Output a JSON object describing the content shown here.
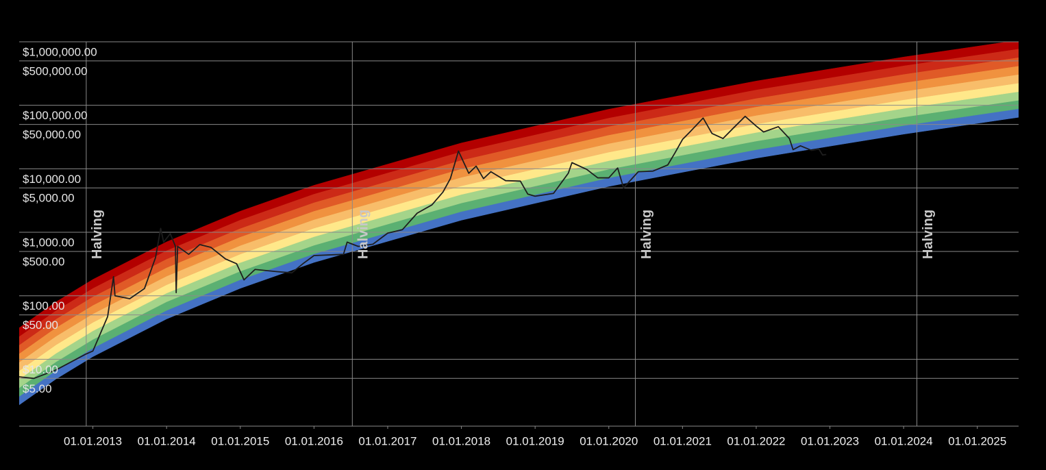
{
  "chart_data": {
    "type": "line",
    "xlim": [
      2012.0,
      2025.56
    ],
    "ylim": [
      0.885,
      1000000
    ],
    "log_y": true,
    "grid": true,
    "xticks": [
      {
        "value": 2013,
        "label": "01.01.2013"
      },
      {
        "value": 2014,
        "label": "01.01.2014"
      },
      {
        "value": 2015,
        "label": "01.01.2015"
      },
      {
        "value": 2016,
        "label": "01.01.2016"
      },
      {
        "value": 2017,
        "label": "01.01.2017"
      },
      {
        "value": 2018,
        "label": "01.01.2018"
      },
      {
        "value": 2019,
        "label": "01.01.2019"
      },
      {
        "value": 2020,
        "label": "01.01.2020"
      },
      {
        "value": 2021,
        "label": "01.01.2021"
      },
      {
        "value": 2022,
        "label": "01.01.2022"
      },
      {
        "value": 2023,
        "label": "01.01.2023"
      },
      {
        "value": 2024,
        "label": "01.01.2024"
      },
      {
        "value": 2025,
        "label": "01.01.2025"
      }
    ],
    "yticks": [
      {
        "value": 1000000,
        "label": "$1,000,000.00"
      },
      {
        "value": 500000,
        "label": "$500,000.00"
      },
      {
        "value": 100000,
        "label": "$100,000.00"
      },
      {
        "value": 50000,
        "label": "$50,000.00"
      },
      {
        "value": 10000,
        "label": "$10,000.00"
      },
      {
        "value": 5000,
        "label": "$5,000.00"
      },
      {
        "value": 1000,
        "label": "$1,000.00"
      },
      {
        "value": 500,
        "label": "$500.00"
      },
      {
        "value": 100,
        "label": "$100.00"
      },
      {
        "value": 50,
        "label": "$50.00"
      },
      {
        "value": 10,
        "label": "$10.00"
      },
      {
        "value": 5,
        "label": "$5.00"
      }
    ],
    "halvings": [
      {
        "x": 2012.91,
        "label": "Halving"
      },
      {
        "x": 2016.52,
        "label": "Halving"
      },
      {
        "x": 2020.36,
        "label": "Halving"
      },
      {
        "x": 2024.18,
        "label": "Halving"
      }
    ],
    "band_x": [
      2012,
      2012.5,
      2013,
      2014,
      2015,
      2016,
      2018,
      2020,
      2022,
      2024,
      2025.56
    ],
    "band_edges": [
      [
        1.91,
        4.89,
        11.0,
        43.1,
        131,
        335,
        1550,
        5280,
        14700,
        35100,
        64600
      ],
      [
        2.6,
        6.67,
        15.0,
        58.8,
        179,
        457,
        2120,
        7210,
        20000,
        47900,
        88100
      ],
      [
        3.55,
        9.11,
        20.5,
        80.3,
        244,
        624,
        2890,
        9840,
        27300,
        65300,
        120000
      ],
      [
        4.84,
        12.4,
        28.0,
        110,
        333,
        851,
        3940,
        13400,
        37300,
        89100,
        164000
      ],
      [
        6.6,
        16.9,
        38.1,
        149,
        454,
        1161,
        5380,
        18300,
        50800,
        122000,
        224000
      ],
      [
        9.01,
        23.1,
        52.1,
        204,
        620,
        1585,
        7340,
        25000,
        69400,
        166000,
        306000
      ],
      [
        12.3,
        31.6,
        71.0,
        278,
        846,
        2163,
        10000,
        34100,
        94700,
        227000,
        417000
      ],
      [
        16.8,
        43.1,
        96.9,
        380,
        1154,
        2952,
        13700,
        46600,
        129000,
        309000,
        569000
      ],
      [
        22.9,
        58.8,
        132,
        518,
        1575,
        4027,
        18700,
        63500,
        176000,
        422000,
        776000
      ],
      [
        31.3,
        80.2,
        181,
        707,
        2150,
        5497,
        25500,
        86700,
        241000,
        576000,
        1060000
      ]
    ],
    "band_colors": [
      "#4472c4",
      "#5bb072",
      "#a4d48a",
      "#ffe88a",
      "#f8bd6a",
      "#f0923f",
      "#e05a27",
      "#cc2a17",
      "#b30000"
    ],
    "color": "#1e1e1e",
    "x": [
      2012.0,
      2012.2,
      2012.5,
      2012.9,
      2013.0,
      2013.2,
      2013.28,
      2013.3,
      2013.5,
      2013.7,
      2013.85,
      2013.92,
      2013.96,
      2014.05,
      2014.12,
      2014.13,
      2014.15,
      2014.3,
      2014.45,
      2014.6,
      2014.8,
      2014.95,
      2015.05,
      2015.2,
      2015.5,
      2015.7,
      2015.85,
      2016.0,
      2016.4,
      2016.45,
      2016.6,
      2016.8,
      2017.0,
      2017.2,
      2017.4,
      2017.6,
      2017.75,
      2017.85,
      2017.96,
      2018.1,
      2018.2,
      2018.3,
      2018.4,
      2018.6,
      2018.8,
      2018.9,
      2019.0,
      2019.25,
      2019.45,
      2019.5,
      2019.7,
      2019.85,
      2020.0,
      2020.12,
      2020.2,
      2020.4,
      2020.6,
      2020.8,
      2020.9,
      2021.0,
      2021.1,
      2021.28,
      2021.4,
      2021.55,
      2021.7,
      2021.85,
      2022.0,
      2022.1,
      2022.3,
      2022.45,
      2022.5,
      2022.6,
      2022.75,
      2022.85,
      2022.9,
      2022.95
    ],
    "values": [
      5.3,
      5.0,
      6.8,
      12,
      13.5,
      47,
      200,
      100,
      90,
      130,
      400,
      1150,
      700,
      950,
      600,
      112,
      600,
      450,
      640,
      580,
      380,
      320,
      178,
      260,
      240,
      230,
      320,
      430,
      450,
      700,
      600,
      650,
      970,
      1100,
      2000,
      2700,
      4300,
      7000,
      19000,
      8500,
      11000,
      7000,
      9000,
      6500,
      6400,
      4000,
      3700,
      4100,
      8500,
      12500,
      9800,
      7200,
      7200,
      10300,
      5000,
      9000,
      9200,
      11500,
      18000,
      29000,
      38000,
      63000,
      36000,
      30000,
      45000,
      67000,
      47000,
      38000,
      46000,
      30000,
      20000,
      23000,
      19500,
      20500,
      16500,
      16800
    ]
  }
}
